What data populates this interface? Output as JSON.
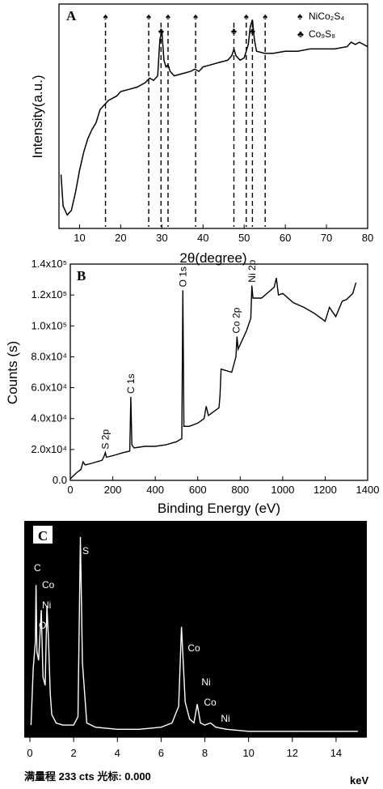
{
  "chart_data": [
    {
      "panel": "A",
      "type": "line",
      "xlabel": "2θ(degree)",
      "ylabel": "Intensity(a.u.)",
      "xlim": [
        5,
        80
      ],
      "xticks": [
        10,
        20,
        30,
        40,
        50,
        60,
        70,
        80
      ],
      "y_ticks_shown": false,
      "series": [
        {
          "x": [
            5.5,
            6,
            7,
            8,
            9,
            10,
            11,
            12,
            13,
            14,
            15,
            16,
            17,
            18,
            19,
            20,
            22,
            24,
            26,
            27,
            28,
            29,
            29.5,
            30,
            30.5,
            31,
            31.5,
            32,
            33,
            35,
            37,
            38,
            39,
            40,
            42,
            44,
            46,
            47,
            47.5,
            48,
            49,
            50,
            51,
            51.5,
            52,
            52.5,
            53,
            55,
            57,
            60,
            63,
            66,
            69,
            72,
            75,
            76,
            77,
            78,
            80
          ],
          "y": [
            0.24,
            0.1,
            0.06,
            0.08,
            0.16,
            0.26,
            0.34,
            0.4,
            0.44,
            0.47,
            0.53,
            0.55,
            0.57,
            0.58,
            0.59,
            0.61,
            0.62,
            0.63,
            0.65,
            0.67,
            0.66,
            0.68,
            0.84,
            0.88,
            0.75,
            0.72,
            0.73,
            0.7,
            0.68,
            0.69,
            0.7,
            0.71,
            0.7,
            0.72,
            0.73,
            0.74,
            0.75,
            0.77,
            0.8,
            0.77,
            0.75,
            0.76,
            0.82,
            0.9,
            0.93,
            0.84,
            0.79,
            0.78,
            0.78,
            0.79,
            0.79,
            0.8,
            0.8,
            0.8,
            0.81,
            0.83,
            0.82,
            0.83,
            0.81
          ]
        }
      ],
      "reference_lines": [
        {
          "x": 16.3,
          "marker": "spade"
        },
        {
          "x": 26.8,
          "marker": "spade"
        },
        {
          "x": 29.8,
          "marker": "club"
        },
        {
          "x": 31.5,
          "marker": "spade"
        },
        {
          "x": 38.2,
          "marker": "spade"
        },
        {
          "x": 47.5,
          "marker": "club"
        },
        {
          "x": 50.5,
          "marker": "spade"
        },
        {
          "x": 52.0,
          "marker": "club"
        },
        {
          "x": 55.1,
          "marker": "spade"
        }
      ],
      "legend": [
        {
          "marker": "spade",
          "label": "NiCo₂S₄"
        },
        {
          "marker": "club",
          "label": "Co₉S₈"
        }
      ],
      "legend_position": "top-right"
    },
    {
      "panel": "B",
      "type": "line",
      "xlabel": "Binding Energy (eV)",
      "ylabel": "Counts (s)",
      "xlim": [
        0,
        1400
      ],
      "ylim": [
        0,
        140000
      ],
      "xticks": [
        0,
        200,
        400,
        600,
        800,
        1000,
        1200,
        1400
      ],
      "yticks": [
        "0.0",
        "2.0x10⁴",
        "4.0x10⁴",
        "6.0x10⁴",
        "8.0x10⁴",
        "1.0x10⁵",
        "1.2x10⁵",
        "1.4x10⁵"
      ],
      "ytick_values": [
        0,
        20000,
        40000,
        60000,
        80000,
        100000,
        120000,
        140000
      ],
      "series": [
        {
          "x": [
            0,
            30,
            50,
            60,
            70,
            100,
            150,
            160,
            165,
            170,
            200,
            250,
            280,
            285,
            290,
            300,
            350,
            400,
            450,
            500,
            525,
            530,
            535,
            560,
            600,
            630,
            640,
            650,
            700,
            705,
            710,
            760,
            780,
            785,
            790,
            830,
            850,
            855,
            860,
            900,
            960,
            970,
            980,
            1000,
            1050,
            1100,
            1150,
            1200,
            1220,
            1250,
            1280,
            1300,
            1330,
            1345
          ],
          "y": [
            1000,
            5000,
            7000,
            12000,
            10000,
            11000,
            13000,
            16000,
            18000,
            15000,
            16000,
            18000,
            19000,
            54000,
            23000,
            21000,
            22000,
            22000,
            23000,
            25000,
            27000,
            123000,
            35000,
            35000,
            37000,
            40000,
            48000,
            42000,
            47000,
            55000,
            72000,
            70000,
            80000,
            93000,
            85000,
            97000,
            105000,
            126000,
            118000,
            118000,
            125000,
            131000,
            120000,
            121000,
            115000,
            112000,
            108000,
            103000,
            112000,
            106000,
            116000,
            117000,
            121000,
            128000
          ]
        }
      ],
      "peak_labels": [
        {
          "label": "S 2p",
          "x": 165
        },
        {
          "label": "C 1s",
          "x": 285
        },
        {
          "label": "O 1s",
          "x": 531
        },
        {
          "label": "Co 2p",
          "x": 781
        },
        {
          "label": "Ni 2p",
          "x": 856
        }
      ]
    },
    {
      "panel": "C",
      "type": "line",
      "xlabel": "keV",
      "xlim": [
        0,
        15
      ],
      "xticks": [
        0,
        2,
        4,
        6,
        8,
        10,
        12,
        14
      ],
      "background": "#000000",
      "series": [
        {
          "x": [
            0.05,
            0.15,
            0.25,
            0.28,
            0.32,
            0.4,
            0.52,
            0.6,
            0.7,
            0.78,
            0.85,
            0.93,
            1.0,
            1.2,
            1.5,
            2.0,
            2.2,
            2.31,
            2.4,
            2.6,
            3.0,
            4.0,
            5.0,
            6.0,
            6.5,
            6.8,
            6.93,
            7.1,
            7.3,
            7.5,
            7.65,
            7.8,
            8.0,
            8.26,
            8.5,
            9.0,
            10.0,
            12.0,
            14.0,
            15.0
          ],
          "y": [
            0.05,
            0.32,
            0.45,
            0.72,
            0.4,
            0.36,
            0.6,
            0.28,
            0.24,
            0.62,
            0.46,
            0.2,
            0.1,
            0.06,
            0.05,
            0.05,
            0.09,
            0.95,
            0.35,
            0.06,
            0.04,
            0.03,
            0.03,
            0.04,
            0.06,
            0.14,
            0.52,
            0.16,
            0.08,
            0.06,
            0.15,
            0.06,
            0.05,
            0.06,
            0.04,
            0.03,
            0.02,
            0.02,
            0.02,
            0.02
          ]
        }
      ],
      "peak_labels": [
        "C",
        "Co",
        "Ni",
        "O",
        "S",
        "Co",
        "Ni",
        "Co",
        "Ni"
      ],
      "footer": "满量程 233 cts 光标: 0.000"
    }
  ],
  "palette": {
    "line": "#000000",
    "eds_bg": "#000000",
    "eds_fg": "#ffffff"
  }
}
